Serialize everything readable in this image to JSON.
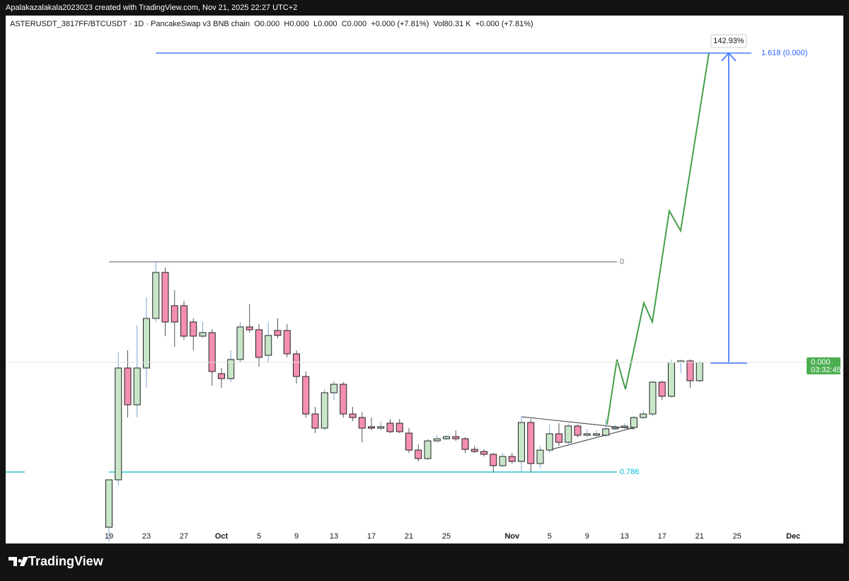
{
  "header": "Apalakazalakala2023023 created with TradingView.com, Nov 21, 2025 22:27 UTC+2",
  "chart_data": {
    "type": "candlestick",
    "title": "ASTERUSDT_3817FF/BTCUSDT · 1D · PancakeSwap v3 BNB chain  O0.000  H0.000  L0.000  C0.000  +0.000 (+7.81%)  Vol80.31 K  +0.000 (+7.81%)",
    "categories": [
      "19",
      null,
      null,
      null,
      "23",
      null,
      null,
      null,
      "27",
      null,
      null,
      null,
      "Oct",
      null,
      null,
      null,
      "5",
      null,
      null,
      null,
      "9",
      null,
      null,
      null,
      "13",
      null,
      null,
      null,
      "17",
      null,
      null,
      null,
      "21",
      null,
      null,
      null,
      "25",
      null,
      null,
      null,
      null,
      null,
      null,
      "Nov",
      null,
      null,
      null,
      "5",
      null,
      null,
      null,
      "9",
      null,
      null,
      null,
      "13",
      null,
      null,
      null,
      "17",
      null,
      null,
      null,
      "21",
      null,
      null,
      null,
      "25",
      null,
      null,
      null,
      null,
      null,
      "Dec"
    ],
    "open": [
      20,
      87,
      245,
      193,
      245,
      315,
      380,
      333,
      333,
      310,
      290,
      295,
      237,
      230,
      257,
      303,
      299,
      263,
      298,
      298,
      265,
      233,
      180,
      160,
      210,
      222,
      180,
      175,
      162,
      160,
      167,
      167,
      153,
      129,
      117,
      142,
      145,
      148,
      145,
      130,
      127,
      123,
      107,
      120,
      113,
      168,
      110,
      129,
      152,
      140,
      163,
      150,
      150,
      150,
      159,
      161,
      161,
      175,
      180,
      225,
      205,
      253,
      255,
      227,
      null,
      null,
      null,
      null,
      null,
      null,
      null,
      null,
      null,
      null
    ],
    "high": [
      87,
      267,
      270,
      305,
      345,
      395,
      387,
      355,
      340,
      315,
      310,
      300,
      245,
      270,
      310,
      335,
      307,
      310,
      315,
      307,
      270,
      240,
      190,
      215,
      227,
      225,
      190,
      183,
      175,
      170,
      173,
      173,
      160,
      137,
      145,
      150,
      150,
      157,
      147,
      135,
      130,
      125,
      125,
      125,
      177,
      173,
      135,
      165,
      167,
      167,
      165,
      159,
      157,
      173,
      165,
      167,
      177,
      185,
      227,
      227,
      257,
      257,
      257,
      255,
      null,
      null,
      null,
      null,
      null,
      null,
      null,
      null,
      null,
      null
    ],
    "low": [
      0,
      79,
      175,
      175,
      217,
      310,
      290,
      275,
      285,
      270,
      287,
      220,
      217,
      225,
      253,
      295,
      247,
      253,
      287,
      260,
      223,
      175,
      153,
      157,
      200,
      175,
      170,
      140,
      157,
      157,
      153,
      153,
      125,
      113,
      115,
      140,
      143,
      142,
      125,
      125,
      120,
      97,
      105,
      110,
      97,
      97,
      103,
      125,
      135,
      135,
      147,
      147,
      148,
      147,
      157,
      159,
      159,
      173,
      177,
      200,
      203,
      238,
      217,
      225,
      null,
      null,
      null,
      null,
      null,
      null,
      null,
      null,
      null,
      null
    ],
    "close": [
      87,
      245,
      193,
      245,
      315,
      380,
      310,
      310,
      290,
      290,
      295,
      240,
      230,
      257,
      303,
      299,
      260,
      291,
      291,
      265,
      233,
      180,
      160,
      210,
      222,
      180,
      175,
      160,
      160,
      162,
      155,
      155,
      129,
      117,
      142,
      145,
      148,
      145,
      130,
      127,
      123,
      107,
      120,
      113,
      168,
      110,
      129,
      152,
      140,
      163,
      150,
      152,
      152,
      159,
      161,
      163,
      175,
      180,
      225,
      205,
      253,
      255,
      227,
      253,
      null,
      null,
      null,
      null,
      null,
      null,
      null,
      null,
      null,
      null
    ],
    "ylim": [
      0,
      745
    ],
    "up_color": "#c8e6c9",
    "down_color": "#f48fb1",
    "levels": [
      {
        "name": "0",
        "value": 395,
        "color": "#787b86"
      },
      {
        "name": "0.786",
        "value": 98,
        "color": "#00bcd4"
      },
      {
        "name": "1.618 (0.000)",
        "value": 690,
        "color": "#2962ff"
      }
    ],
    "annotation": "142.93%",
    "last_price": "0.000",
    "countdown": "03:32:45"
  },
  "footer": "TradingView"
}
